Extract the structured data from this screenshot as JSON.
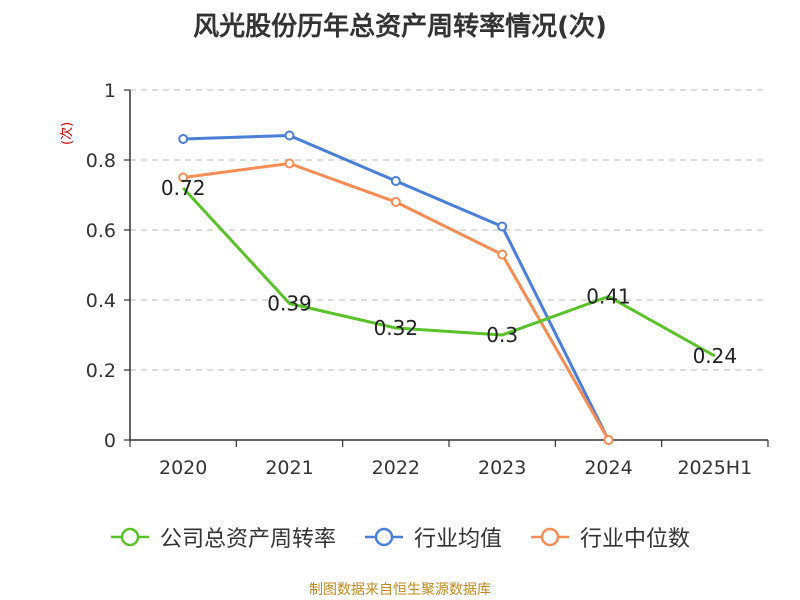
{
  "chart_data": {
    "type": "line",
    "title": "风光股份历年总资产周转率情况(次)",
    "ylabel": "(次)",
    "categories": [
      "2020",
      "2021",
      "2022",
      "2023",
      "2024",
      "2025H1"
    ],
    "ylim": [
      0,
      1
    ],
    "yticks": [
      0,
      0.2,
      0.4,
      0.6,
      0.8,
      1
    ],
    "ytick_labels": [
      "0",
      "0.2",
      "0.4",
      "0.6",
      "0.8",
      "1"
    ],
    "grid": true,
    "legend_position": "bottom",
    "series": [
      {
        "name": "公司总资产周转率",
        "color": "#5ac229",
        "values": [
          0.72,
          0.39,
          0.32,
          0.3,
          0.41,
          0.24
        ],
        "labels": [
          "0.72",
          "0.39",
          "0.32",
          "0.3",
          "0.41",
          "0.24"
        ]
      },
      {
        "name": "行业均值",
        "color": "#4a7fd8",
        "values": [
          0.86,
          0.87,
          0.74,
          0.61,
          0.0,
          null
        ]
      },
      {
        "name": "行业中位数",
        "color": "#f78c55",
        "values": [
          0.75,
          0.79,
          0.68,
          0.53,
          0.0,
          null
        ]
      }
    ]
  },
  "source": "制图数据来自恒生聚源数据库"
}
